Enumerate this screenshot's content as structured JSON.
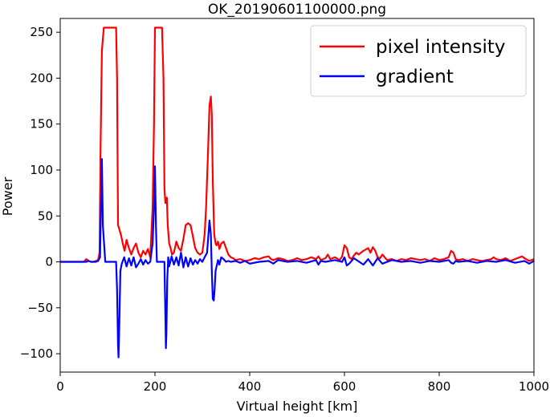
{
  "chart_data": {
    "type": "line",
    "title": "OK_20190601100000.png",
    "xlabel": "Virtual height [km]",
    "ylabel": "Power",
    "xlim": [
      0,
      1000
    ],
    "ylim": [
      -120,
      265
    ],
    "xticks": [
      0,
      200,
      400,
      600,
      800,
      1000
    ],
    "yticks": [
      -100,
      -50,
      0,
      50,
      100,
      150,
      200,
      250
    ],
    "grid": false,
    "legend_position": "top-right",
    "series": [
      {
        "name": "pixel intensity",
        "color": "#ff0000",
        "x": [
          0,
          50,
          55,
          60,
          65,
          70,
          75,
          80,
          83,
          85,
          88,
          92,
          100,
          110,
          118,
          120,
          122,
          125,
          128,
          132,
          136,
          140,
          145,
          150,
          155,
          160,
          165,
          170,
          175,
          180,
          185,
          190,
          195,
          198,
          200,
          202,
          205,
          210,
          215,
          218,
          220,
          222,
          225,
          227,
          230,
          233,
          236,
          240,
          245,
          250,
          255,
          260,
          265,
          270,
          275,
          280,
          285,
          290,
          295,
          300,
          305,
          308,
          312,
          315,
          318,
          320,
          322,
          325,
          328,
          330,
          333,
          336,
          340,
          345,
          350,
          355,
          360,
          365,
          370,
          380,
          390,
          400,
          410,
          420,
          430,
          440,
          445,
          450,
          460,
          470,
          480,
          490,
          500,
          510,
          520,
          530,
          540,
          545,
          550,
          560,
          565,
          570,
          580,
          590,
          595,
          600,
          605,
          610,
          615,
          620,
          625,
          630,
          640,
          650,
          655,
          660,
          665,
          670,
          675,
          680,
          690,
          700,
          710,
          720,
          730,
          740,
          750,
          760,
          770,
          780,
          790,
          800,
          810,
          820,
          825,
          830,
          835,
          840,
          850,
          860,
          870,
          880,
          890,
          900,
          910,
          915,
          920,
          930,
          940,
          950,
          960,
          970,
          975,
          980,
          990,
          1000
        ],
        "values": [
          0,
          0,
          3,
          1,
          0,
          0,
          1,
          2,
          10,
          120,
          230,
          255,
          255,
          255,
          255,
          200,
          40,
          35,
          30,
          20,
          12,
          24,
          15,
          8,
          15,
          20,
          10,
          5,
          12,
          8,
          14,
          5,
          60,
          150,
          255,
          255,
          255,
          255,
          255,
          200,
          80,
          64,
          70,
          40,
          20,
          15,
          8,
          10,
          22,
          15,
          12,
          25,
          40,
          42,
          40,
          28,
          15,
          10,
          8,
          10,
          30,
          60,
          120,
          170,
          180,
          160,
          90,
          30,
          20,
          18,
          22,
          14,
          20,
          22,
          15,
          8,
          5,
          4,
          2,
          3,
          1,
          2,
          4,
          3,
          5,
          6,
          3,
          2,
          4,
          3,
          1,
          2,
          4,
          2,
          3,
          5,
          3,
          6,
          2,
          4,
          8,
          3,
          5,
          2,
          6,
          18,
          15,
          5,
          3,
          7,
          10,
          8,
          12,
          15,
          10,
          16,
          12,
          5,
          4,
          8,
          2,
          3,
          1,
          3,
          2,
          4,
          3,
          2,
          3,
          1,
          4,
          2,
          3,
          5,
          12,
          10,
          3,
          2,
          3,
          1,
          3,
          2,
          1,
          2,
          3,
          5,
          3,
          2,
          4,
          1,
          3,
          5,
          6,
          4,
          1,
          3
        ]
      },
      {
        "name": "gradient",
        "color": "#0000ff",
        "x": [
          0,
          50,
          55,
          60,
          65,
          70,
          75,
          80,
          84,
          86,
          88,
          90,
          95,
          100,
          110,
          118,
          120,
          122,
          123,
          125,
          127,
          130,
          135,
          140,
          145,
          150,
          155,
          160,
          165,
          170,
          175,
          180,
          185,
          190,
          195,
          198,
          200,
          202,
          204,
          206,
          210,
          215,
          218,
          220,
          222,
          223,
          224,
          226,
          228,
          230,
          235,
          240,
          245,
          250,
          255,
          260,
          265,
          270,
          275,
          280,
          285,
          290,
          295,
          300,
          305,
          310,
          315,
          318,
          320,
          322,
          324,
          326,
          328,
          330,
          333,
          336,
          340,
          345,
          350,
          355,
          360,
          370,
          380,
          390,
          400,
          420,
          440,
          450,
          460,
          480,
          500,
          520,
          540,
          545,
          550,
          560,
          580,
          595,
          600,
          605,
          610,
          620,
          640,
          650,
          660,
          670,
          680,
          700,
          720,
          740,
          760,
          780,
          800,
          820,
          825,
          830,
          835,
          840,
          860,
          880,
          900,
          920,
          940,
          960,
          980,
          990,
          1000
        ],
        "values": [
          0,
          0,
          0,
          1,
          0,
          0,
          0,
          1,
          5,
          60,
          112,
          40,
          0,
          0,
          0,
          0,
          -30,
          -90,
          -104,
          -60,
          -10,
          -2,
          5,
          -5,
          4,
          -4,
          5,
          -6,
          -2,
          3,
          -3,
          2,
          -2,
          0,
          20,
          60,
          104,
          40,
          0,
          0,
          0,
          0,
          0,
          0,
          -60,
          -94,
          -80,
          -20,
          5,
          -5,
          6,
          -3,
          5,
          -4,
          10,
          -6,
          5,
          -5,
          4,
          -3,
          2,
          -2,
          3,
          0,
          5,
          10,
          45,
          30,
          -10,
          -40,
          -42,
          -30,
          -10,
          -5,
          2,
          -3,
          5,
          3,
          0,
          1,
          0,
          1,
          -1,
          1,
          -2,
          0,
          1,
          -2,
          2,
          0,
          1,
          -1,
          2,
          -3,
          1,
          0,
          2,
          0,
          5,
          -4,
          -2,
          4,
          -3,
          3,
          -4,
          4,
          -2,
          2,
          0,
          1,
          -1,
          1,
          0,
          2,
          -1,
          -2,
          1,
          0,
          1,
          -1,
          1,
          0,
          2,
          -1,
          1,
          -2,
          1
        ]
      }
    ]
  }
}
